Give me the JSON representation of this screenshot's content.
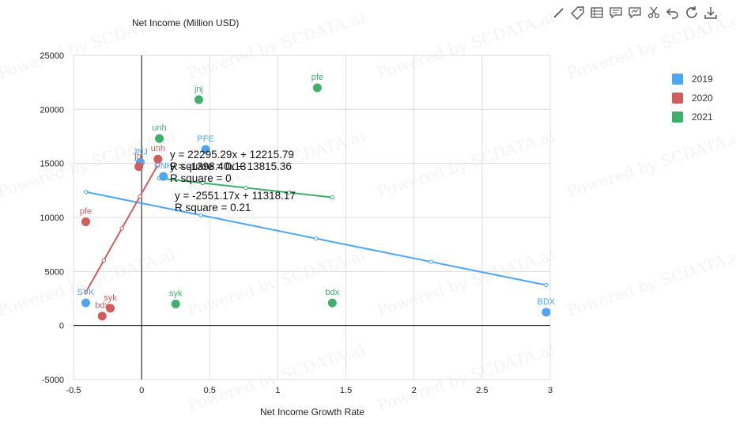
{
  "watermark": "Powered by SCDATA.ai",
  "toolbar": {
    "icons": [
      "pencil-icon",
      "tag-icon",
      "table-icon",
      "comment-icon",
      "chart-comment-icon",
      "scissors-icon",
      "undo-icon",
      "refresh-icon",
      "download-icon"
    ]
  },
  "colors": {
    "2019": "#4da6f5",
    "2020": "#d05d5b",
    "2021": "#3fb06a"
  },
  "chart_data": {
    "type": "scatter",
    "xlabel": "Net Income Growth Rate",
    "ylabel": "Net Income (Million USD)",
    "xlim": [
      -0.5,
      3
    ],
    "ylim": [
      -5000,
      25000
    ],
    "x_ticks": [
      "-0.5",
      "0",
      "0.5",
      "1",
      "1.5",
      "2",
      "2.5",
      "3"
    ],
    "y_ticks": [
      "-5000",
      "0",
      "5000",
      "10000",
      "15000",
      "20000",
      "25000"
    ],
    "grid": true,
    "legend_position": "right",
    "series": [
      {
        "name": "2019",
        "color": "#4da6f5",
        "points": [
          {
            "label": "JNJ",
            "x": -0.01,
            "y": 15100
          },
          {
            "label": "PFE",
            "x": 0.47,
            "y": 16300
          },
          {
            "label": "UNH",
            "x": 0.16,
            "y": 13800
          },
          {
            "label": "SYK",
            "x": -0.41,
            "y": 2100
          },
          {
            "label": "BDX",
            "x": 2.97,
            "y": 1233
          }
        ],
        "trendline": {
          "equation": "y = -2551.17x + 11318.17",
          "r_square": "R square = 0.21",
          "x_range": [
            -0.41,
            2.97
          ]
        }
      },
      {
        "name": "2020",
        "color": "#d05d5b",
        "points": [
          {
            "label": "jnj",
            "x": -0.02,
            "y": 14700
          },
          {
            "label": "unh",
            "x": 0.12,
            "y": 15400
          },
          {
            "label": "pfe",
            "x": -0.41,
            "y": 9600
          },
          {
            "label": "syk",
            "x": -0.23,
            "y": 1600
          },
          {
            "label": "bdx",
            "x": -0.29,
            "y": 874
          }
        ],
        "trendline": {
          "equation": "y = 22295.29x + 12215.79",
          "r_square": "R square = 0.13",
          "x_range": [
            -0.41,
            0.12
          ]
        }
      },
      {
        "name": "2021",
        "color": "#3fb06a",
        "points": [
          {
            "label": "jnj",
            "x": 0.42,
            "y": 20900
          },
          {
            "label": "pfe",
            "x": 1.29,
            "y": 22000
          },
          {
            "label": "unh",
            "x": 0.13,
            "y": 17300
          },
          {
            "label": "syk",
            "x": 0.25,
            "y": 2000
          },
          {
            "label": "bdx",
            "x": 1.4,
            "y": 2092
          }
        ],
        "trendline": {
          "equation": "y = -1398.40x + 13815.36",
          "r_square": "R square = 0",
          "x_range": [
            0.13,
            1.4
          ]
        }
      }
    ]
  }
}
